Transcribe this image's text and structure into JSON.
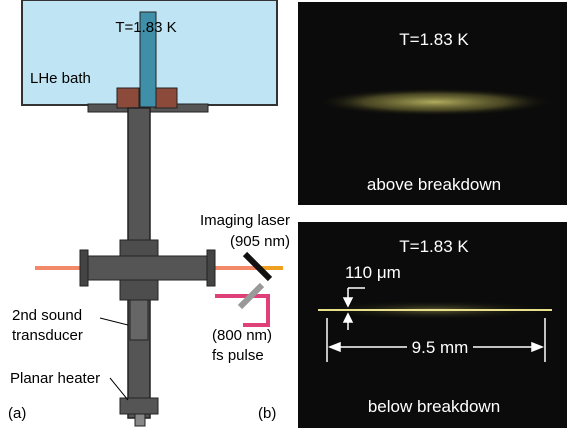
{
  "panel_a": {
    "label": "(a)",
    "temperature": "T=1.83 K",
    "bath": "LHe bath",
    "imaging_laser": [
      "Imaging laser",
      "(905 nm)"
    ],
    "transducer": [
      "2nd sound",
      "transducer"
    ],
    "pulse": [
      "(800 nm)",
      "fs pulse"
    ],
    "heater": "Planar heater"
  },
  "panel_b": {
    "label": "(b)",
    "images": [
      {
        "temperature": "T=1.83 K",
        "caption": "above breakdown"
      },
      {
        "temperature": "T=1.83 K",
        "caption": "below breakdown",
        "thickness": "110 μm",
        "length": "9.5 mm"
      }
    ]
  }
}
